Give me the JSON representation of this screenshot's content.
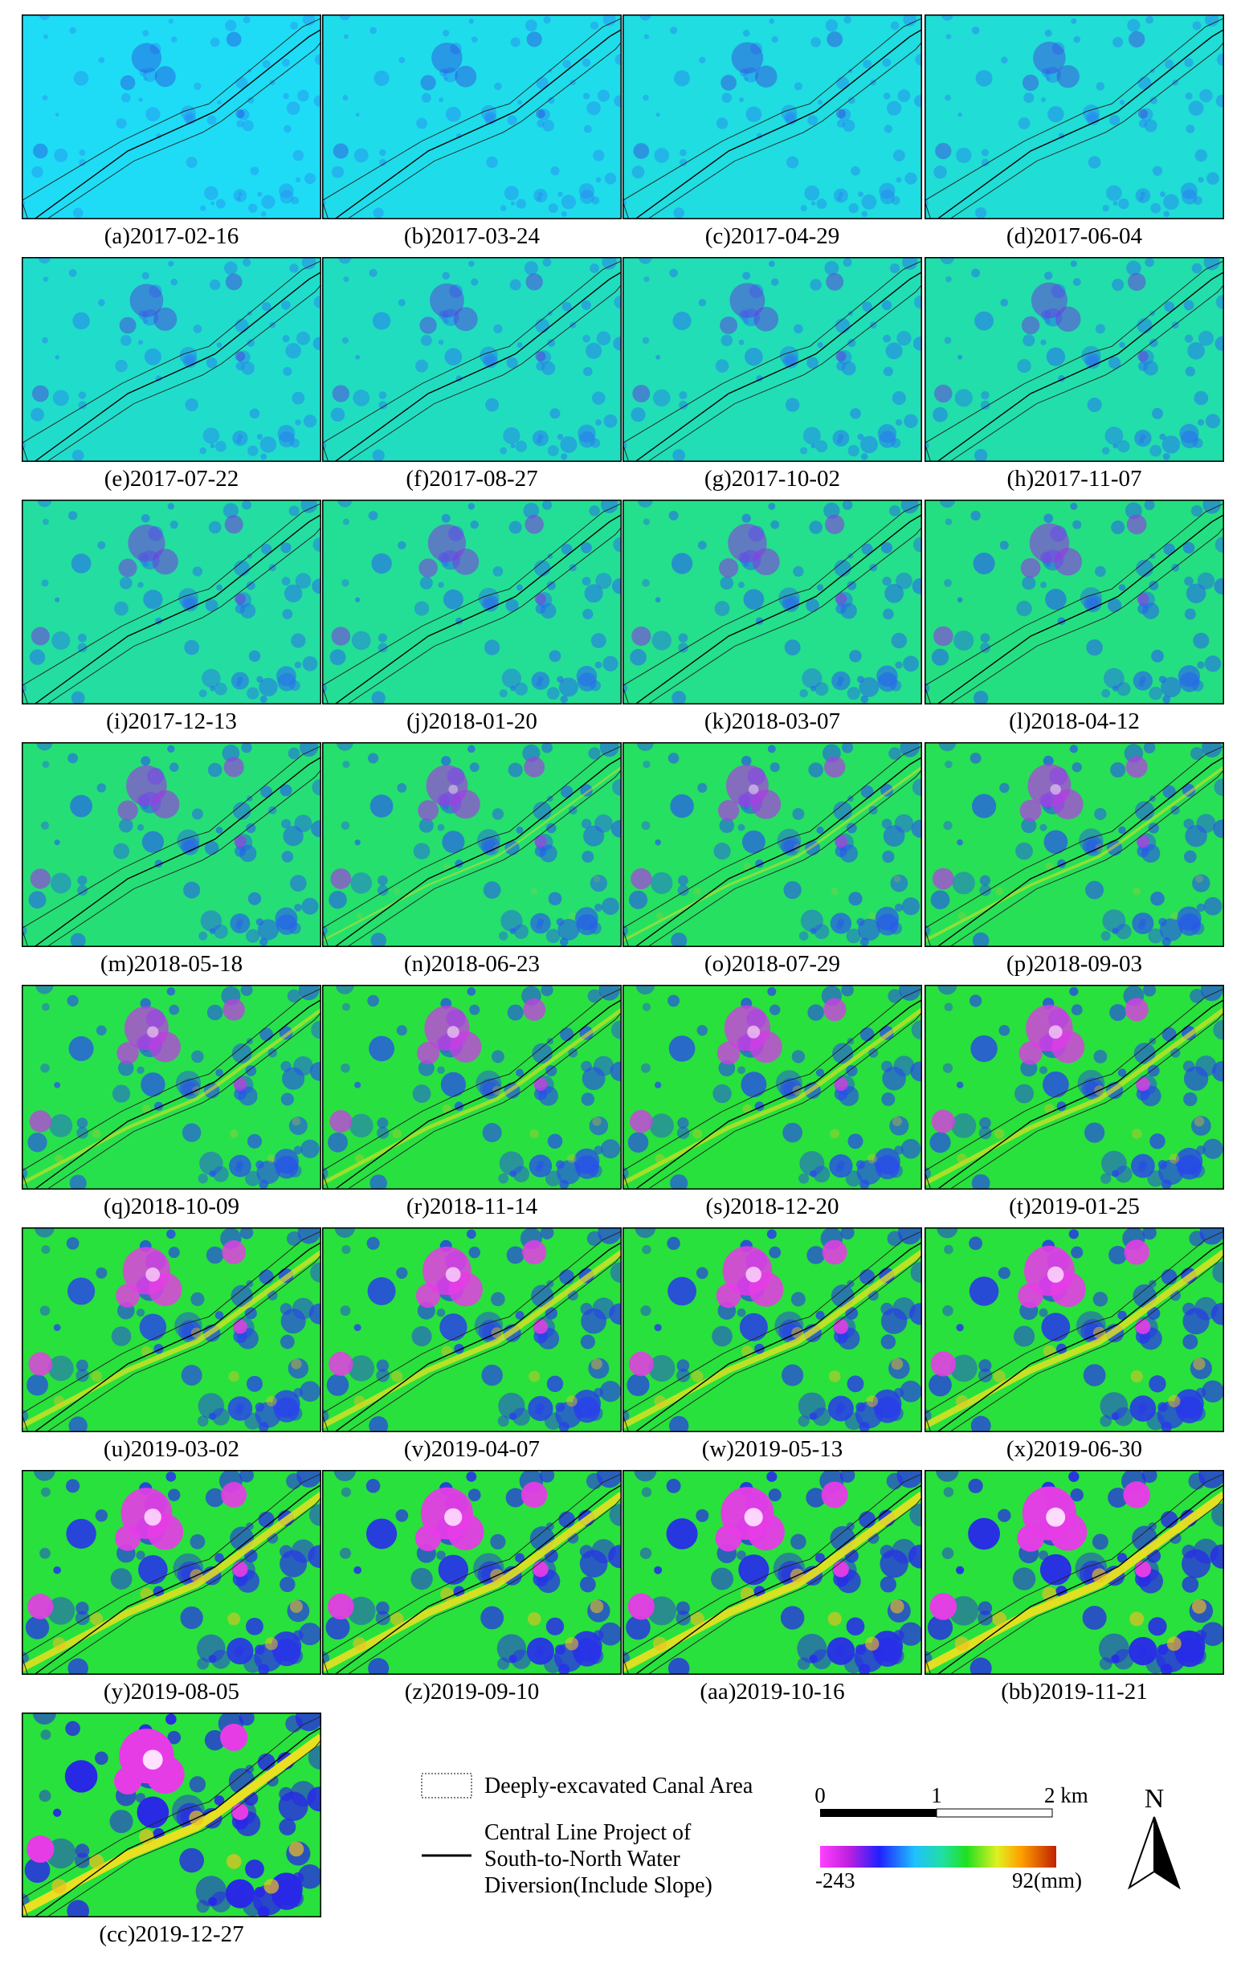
{
  "panels": [
    "(a)2017-02-16",
    "(b)2017-03-24",
    "(c)2017-04-29",
    "(d)2017-06-04",
    "(e)2017-07-22",
    "(f)2017-08-27",
    "(g)2017-10-02",
    "(h)2017-11-07",
    "(i)2017-12-13",
    "(j)2018-01-20",
    "(k)2018-03-07",
    "(l)2018-04-12",
    "(m)2018-05-18",
    "(n)2018-06-23",
    "(o)2018-07-29",
    "(p)2018-09-03",
    "(q)2018-10-09",
    "(r)2018-11-14",
    "(s)2018-12-20",
    "(t)2019-01-25",
    "(u)2019-03-02",
    "(v)2019-04-07",
    "(w)2019-05-13",
    "(x)2019-06-30",
    "(y)2019-08-05",
    "(z)2019-09-10",
    "(aa)2019-10-16",
    "(bb)2019-11-21",
    "(cc)2019-12-27"
  ],
  "legend": {
    "canal_area": "Deeply-excavated Canal Area",
    "central_line": [
      "Central Line Project of",
      "South-to-North Water",
      "Diversion(Include Slope)"
    ]
  },
  "scale_bar": {
    "labels": [
      "0",
      "1",
      "2 km"
    ]
  },
  "colorbar": {
    "min": "-243",
    "max": "92(mm)"
  },
  "north": "N"
}
